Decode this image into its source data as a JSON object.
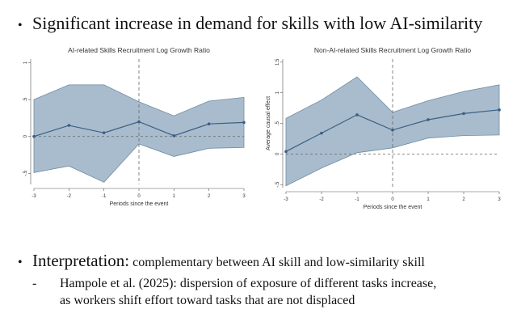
{
  "headline": {
    "bullet": "•",
    "text": "Significant increase in demand for skills with low AI-similarity"
  },
  "interpretation": {
    "bullet": "•",
    "label": "Interpretation:",
    "text": " complementary between AI skill and low-similarity skill",
    "sub_dash": "-",
    "sub_line1": "Hampole et al. (2025): dispersion of exposure of different tasks increase,",
    "sub_line2": "as workers shift effort toward tasks that are not displaced"
  },
  "colors": {
    "band": "#a9bccd",
    "band_edge": "#6f8ba3",
    "line": "#3a5f82",
    "ref": "#666666"
  },
  "chart_data": [
    {
      "type": "line",
      "title": "AI-related Skills Recruitment Log Growth Ratio",
      "xlabel": "Periods since the event",
      "ylabel": "",
      "x": [
        -3,
        -2,
        -1,
        0,
        1,
        2,
        3
      ],
      "xticks": [
        "-3",
        "-2",
        "-1",
        "0",
        "1",
        "2",
        "3"
      ],
      "yticks": [
        "1",
        ".5",
        "0",
        "-.5"
      ],
      "ytick_values": [
        1,
        0.5,
        0,
        -0.5
      ],
      "ylim": [
        -0.65,
        1.05
      ],
      "series": [
        {
          "values": [
            0.0,
            0.15,
            0.05,
            0.2,
            0.01,
            0.17,
            0.19
          ],
          "lower": [
            -0.49,
            -0.4,
            -0.62,
            -0.1,
            -0.27,
            -0.16,
            -0.15
          ],
          "upper": [
            0.5,
            0.7,
            0.7,
            0.47,
            0.28,
            0.48,
            0.53
          ]
        }
      ],
      "reference_lines": {
        "x": 0,
        "y": 0
      },
      "grid": false
    },
    {
      "type": "line",
      "title": "Non-AI-related Skills Recruitment Log Growth Ratio",
      "xlabel": "Periods since the event",
      "ylabel": "Average causal effect",
      "x": [
        -3,
        -2,
        -1,
        0,
        1,
        2,
        3
      ],
      "xticks": [
        "-3",
        "-2",
        "-1",
        "0",
        "1",
        "2",
        "3"
      ],
      "yticks": [
        "1.5",
        "1",
        ".5",
        "0",
        "-.5"
      ],
      "ytick_values": [
        1.5,
        1,
        0.5,
        0,
        -0.5
      ],
      "ylim": [
        -0.55,
        1.55
      ],
      "series": [
        {
          "values": [
            0.04,
            0.34,
            0.64,
            0.39,
            0.56,
            0.66,
            0.72
          ],
          "lower": [
            -0.52,
            -0.23,
            0.02,
            0.1,
            0.26,
            0.3,
            0.31
          ],
          "upper": [
            0.58,
            0.88,
            1.26,
            0.68,
            0.87,
            1.02,
            1.13
          ]
        }
      ],
      "reference_lines": {
        "x": 0,
        "y": 0
      },
      "grid": false
    }
  ]
}
